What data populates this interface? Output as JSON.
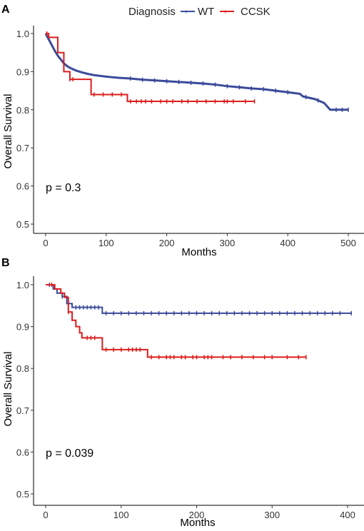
{
  "legend": {
    "title": "Diagnosis",
    "items": [
      {
        "label": "WT",
        "color": "#3a4a9a"
      },
      {
        "label": "CCSK",
        "color": "#dd1c1c"
      }
    ]
  },
  "chart_data": [
    {
      "type": "line",
      "panel_label": "A",
      "xlabel": "Months",
      "ylabel": "Overall Survival",
      "xlim": [
        0,
        500
      ],
      "ylim": [
        0.5,
        1.0
      ],
      "x_ticks": [
        0,
        100,
        200,
        300,
        400,
        500
      ],
      "y_ticks": [
        0.5,
        0.6,
        0.7,
        0.8,
        0.9,
        1.0
      ],
      "annotation": "p = 0.3",
      "grid": false,
      "legend_position": "top",
      "series": [
        {
          "name": "WT",
          "color": "#3a4a9a",
          "step": false,
          "x": [
            0,
            5,
            10,
            15,
            20,
            25,
            30,
            35,
            40,
            50,
            60,
            70,
            80,
            100,
            120,
            140,
            160,
            180,
            200,
            220,
            240,
            260,
            280,
            300,
            320,
            340,
            360,
            380,
            400,
            420,
            425,
            445,
            460,
            470,
            500
          ],
          "y": [
            1.0,
            0.985,
            0.97,
            0.955,
            0.942,
            0.932,
            0.922,
            0.915,
            0.91,
            0.903,
            0.898,
            0.894,
            0.891,
            0.887,
            0.884,
            0.882,
            0.879,
            0.877,
            0.875,
            0.873,
            0.871,
            0.869,
            0.866,
            0.862,
            0.859,
            0.856,
            0.854,
            0.85,
            0.846,
            0.842,
            0.835,
            0.828,
            0.818,
            0.8,
            0.8
          ],
          "censor_x": [
            140,
            160,
            180,
            200,
            220,
            240,
            260,
            280,
            300,
            320,
            340,
            360,
            380,
            400,
            430,
            450,
            480,
            490,
            500
          ]
        },
        {
          "name": "CCSK",
          "color": "#dd1c1c",
          "step": true,
          "x": [
            0,
            5,
            20,
            30,
            40,
            50,
            75,
            135,
            345
          ],
          "y": [
            1.0,
            0.99,
            0.95,
            0.9,
            0.88,
            0.88,
            0.84,
            0.822,
            0.822
          ],
          "censor_x": [
            2,
            40,
            45,
            80,
            95,
            110,
            125,
            140,
            150,
            158,
            165,
            175,
            190,
            200,
            210,
            225,
            235,
            250,
            265,
            280,
            295,
            300,
            310,
            330,
            345
          ]
        }
      ]
    },
    {
      "type": "line",
      "panel_label": "B",
      "xlabel": "Months",
      "ylabel": "Overall Survival",
      "xlim": [
        0,
        400
      ],
      "ylim": [
        0.5,
        1.0
      ],
      "x_ticks": [
        0,
        100,
        200,
        300,
        400
      ],
      "y_ticks": [
        0.5,
        0.6,
        0.7,
        0.8,
        0.9,
        1.0
      ],
      "annotation": "p = 0.039",
      "grid": false,
      "series": [
        {
          "name": "WT",
          "color": "#3a4a9a",
          "step": true,
          "x": [
            0,
            10,
            15,
            22,
            28,
            35,
            75,
            405
          ],
          "y": [
            1.0,
            0.99,
            0.98,
            0.972,
            0.955,
            0.946,
            0.932,
            0.932
          ],
          "censor_x": [
            5,
            22,
            40,
            45,
            50,
            55,
            60,
            65,
            70,
            80,
            90,
            100,
            110,
            120,
            130,
            140,
            150,
            160,
            170,
            180,
            190,
            200,
            210,
            220,
            230,
            240,
            250,
            260,
            270,
            280,
            290,
            300,
            310,
            320,
            330,
            340,
            350,
            360,
            370,
            380,
            390,
            405
          ]
        },
        {
          "name": "CCSK",
          "color": "#dd1c1c",
          "step": true,
          "x": [
            0,
            12,
            20,
            25,
            30,
            35,
            40,
            45,
            48,
            75,
            135,
            345
          ],
          "y": [
            1.0,
            0.99,
            0.98,
            0.97,
            0.935,
            0.915,
            0.9,
            0.885,
            0.873,
            0.845,
            0.827,
            0.827
          ],
          "censor_x": [
            8,
            30,
            55,
            60,
            65,
            80,
            90,
            100,
            110,
            115,
            120,
            125,
            140,
            150,
            160,
            165,
            170,
            180,
            185,
            195,
            200,
            210,
            215,
            220,
            235,
            245,
            260,
            275,
            290,
            300,
            320,
            335,
            345
          ]
        }
      ]
    }
  ]
}
